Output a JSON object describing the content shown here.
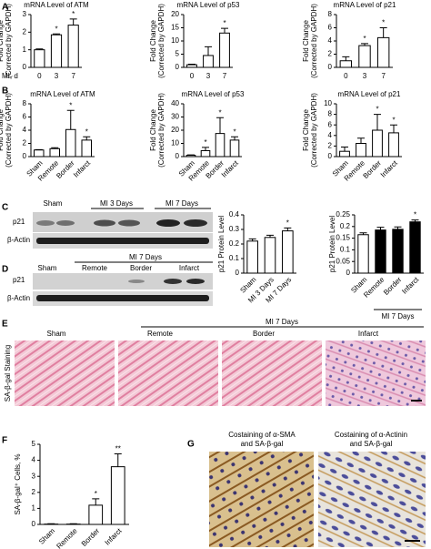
{
  "panel_labels": [
    "A",
    "B",
    "C",
    "D",
    "E",
    "F",
    "G"
  ],
  "chart_data": [
    {
      "type": "bar",
      "title": "mRNA Level of ATM",
      "ylabel": [
        "Fold Change",
        "(Corrected by GAPDH)"
      ],
      "xlabel": "MI, d",
      "categories": [
        "0",
        "3",
        "7"
      ],
      "values": [
        1,
        1.85,
        2.4
      ],
      "errors": [
        0.05,
        0.05,
        0.35
      ],
      "star_labels": [
        null,
        "*",
        "*"
      ],
      "colors": [
        "#ffffff",
        "#ffffff",
        "#ffffff"
      ],
      "ylim": [
        0,
        3
      ],
      "yticks": [
        0,
        1,
        2,
        3
      ]
    },
    {
      "type": "bar",
      "title": "mRNA Level of p53",
      "ylabel": [
        "Fold Change",
        "(Corrected by GAPDH)"
      ],
      "categories": [
        "0",
        "3",
        "7"
      ],
      "values": [
        1,
        4.5,
        13
      ],
      "errors": [
        0.2,
        3.3,
        1.8
      ],
      "star_labels": [
        null,
        null,
        "*"
      ],
      "colors": [
        "#ffffff",
        "#ffffff",
        "#ffffff"
      ],
      "ylim": [
        0,
        20
      ],
      "yticks": [
        0,
        5,
        10,
        15,
        20
      ]
    },
    {
      "type": "bar",
      "title": "mRNA Level of p21",
      "ylabel": [
        "Fold Change",
        "(Corrected by GAPDH)"
      ],
      "categories": [
        "0",
        "3",
        "7"
      ],
      "values": [
        1,
        3.3,
        4.5
      ],
      "errors": [
        0.6,
        0.3,
        1.5
      ],
      "star_labels": [
        null,
        "*",
        "*"
      ],
      "colors": [
        "#ffffff",
        "#ffffff",
        "#ffffff"
      ],
      "ylim": [
        0,
        8
      ],
      "yticks": [
        0,
        2,
        4,
        6,
        8
      ]
    },
    {
      "type": "bar",
      "title": "mRNA Level of ATM",
      "ylabel": [
        "Fold Change",
        "(Corrected by GAPDH)"
      ],
      "categories": [
        "Sham",
        "Remote",
        "Border",
        "Infarct"
      ],
      "values": [
        1,
        1.2,
        4.1,
        2.5
      ],
      "errors": [
        0.05,
        0.15,
        2.9,
        0.5
      ],
      "star_labels": [
        null,
        null,
        "*",
        "*"
      ],
      "colors": [
        "#ffffff",
        "#ffffff",
        "#ffffff",
        "#ffffff"
      ],
      "ylim": [
        0,
        8
      ],
      "yticks": [
        0,
        2,
        4,
        6,
        8
      ]
    },
    {
      "type": "bar",
      "title": "mRNA Level of p53",
      "ylabel": [
        "Fold Change",
        "(Corrected by GAPDH)"
      ],
      "categories": [
        "Sham",
        "Remote",
        "Border",
        "Infarct"
      ],
      "values": [
        1,
        4.5,
        17.5,
        12.5
      ],
      "errors": [
        0.3,
        2.5,
        12,
        2.5
      ],
      "star_labels": [
        null,
        "*",
        "*",
        "*"
      ],
      "colors": [
        "#ffffff",
        "#ffffff",
        "#ffffff",
        "#ffffff"
      ],
      "ylim": [
        0,
        40
      ],
      "yticks": [
        0,
        10,
        20,
        30,
        40
      ]
    },
    {
      "type": "bar",
      "title": "mRNA Level of p21",
      "ylabel": [
        "Fold Change",
        "(Corrected by GAPDH)"
      ],
      "categories": [
        "Sham",
        "Remote",
        "Border",
        "Infarct"
      ],
      "values": [
        1,
        2.5,
        5,
        4.5
      ],
      "errors": [
        0.8,
        1,
        3,
        1.5
      ],
      "star_labels": [
        null,
        null,
        "*",
        "*"
      ],
      "colors": [
        "#ffffff",
        "#ffffff",
        "#ffffff",
        "#ffffff"
      ],
      "ylim": [
        0,
        10
      ],
      "yticks": [
        0,
        2,
        4,
        6,
        8,
        10
      ]
    },
    {
      "type": "bar",
      "ylabel": [
        "p21 Protein Level"
      ],
      "categories": [
        "Sham",
        "MI 3 Days",
        "MI 7 Days"
      ],
      "values": [
        0.22,
        0.245,
        0.29
      ],
      "errors": [
        0.015,
        0.015,
        0.02
      ],
      "star_labels": [
        null,
        null,
        "*"
      ],
      "colors": [
        "#ffffff",
        "#ffffff",
        "#ffffff"
      ],
      "ylim": [
        0,
        0.4
      ],
      "yticks": [
        0,
        0.1,
        0.2,
        0.3,
        0.4
      ]
    },
    {
      "type": "bar",
      "ylabel": [
        "p21 Protein Level"
      ],
      "categories": [
        "Sham",
        "Remote",
        "Border",
        "Infarct"
      ],
      "group_label": "MI 7 Days",
      "values": [
        0.165,
        0.185,
        0.188,
        0.22
      ],
      "errors": [
        0.008,
        0.012,
        0.01,
        0.008
      ],
      "star_labels": [
        null,
        null,
        null,
        "*"
      ],
      "colors": [
        "#ffffff",
        "#000000",
        "#000000",
        "#000000"
      ],
      "ylim": [
        0,
        0.25
      ],
      "yticks": [
        0,
        0.05,
        0.1,
        0.15,
        0.2,
        0.25
      ]
    },
    {
      "type": "bar",
      "ylabel": [
        "SA-β-gal⁺ Cells, %"
      ],
      "categories": [
        "Sham",
        "Remote",
        "Border",
        "Infarct"
      ],
      "values": [
        0.02,
        0.02,
        1.2,
        3.6
      ],
      "errors": [
        0.02,
        0.02,
        0.4,
        0.8
      ],
      "star_labels": [
        null,
        null,
        "*",
        "**"
      ],
      "colors": [
        "#ffffff",
        "#ffffff",
        "#ffffff",
        "#ffffff"
      ],
      "ylim": [
        0,
        5
      ],
      "yticks": [
        0,
        1,
        2,
        3,
        4,
        5
      ]
    }
  ],
  "blot_c": {
    "lanes": [
      "Sham",
      "MI 3 Days",
      "MI 7 Days"
    ],
    "rows": [
      "p21",
      "β-Actin"
    ]
  },
  "blot_d": {
    "group": "MI 7 Days",
    "lanes": [
      "Sham",
      "Remote",
      "Border",
      "Infarct"
    ],
    "rows": [
      "p21",
      "β-Actin"
    ]
  },
  "staining_e": {
    "group": "MI 7 Days",
    "columns": [
      "Sham",
      "Remote",
      "Border",
      "Infarct"
    ],
    "ylabel": "SA-β-gal Staining"
  },
  "costaining_g": {
    "captions": [
      [
        "Costaining of α-SMA",
        "and SA-β-gal"
      ],
      [
        "Costaining of α-Actinin",
        "and SA-β-gal"
      ]
    ]
  }
}
